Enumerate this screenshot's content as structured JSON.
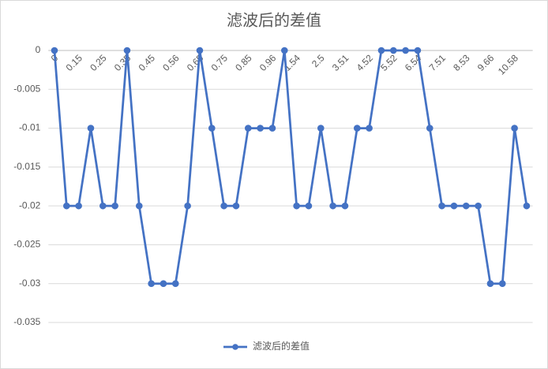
{
  "chart_data": {
    "type": "line",
    "title": "滤波后的差值",
    "categories": [
      "0",
      null,
      "0.15",
      null,
      "0.25",
      null,
      "0.35",
      null,
      "0.45",
      null,
      "0.56",
      null,
      "0.65",
      null,
      "0.75",
      null,
      "0.85",
      null,
      "0.96",
      null,
      "1.54",
      null,
      "2.5",
      null,
      "3.51",
      null,
      "4.52",
      null,
      "5.52",
      null,
      "6.54",
      null,
      "7.51",
      null,
      "8.53",
      null,
      "9.66",
      null,
      "10.58",
      null
    ],
    "series": [
      {
        "name": "滤波后的差值",
        "color": "#4472c4",
        "values": [
          0,
          -0.02,
          -0.02,
          -0.01,
          -0.02,
          -0.02,
          0,
          -0.02,
          -0.03,
          -0.03,
          -0.03,
          -0.02,
          0,
          -0.01,
          -0.02,
          -0.02,
          -0.01,
          -0.01,
          -0.01,
          0,
          -0.02,
          -0.02,
          -0.01,
          -0.02,
          -0.02,
          -0.01,
          -0.01,
          0,
          0,
          0,
          0,
          -0.01,
          -0.02,
          -0.02,
          -0.02,
          -0.02,
          -0.03,
          -0.03,
          -0.01,
          -0.02
        ]
      }
    ],
    "ylim": [
      -0.035,
      0
    ],
    "yticks": [
      0,
      -0.005,
      -0.01,
      -0.015,
      -0.02,
      -0.025,
      -0.03,
      -0.035
    ],
    "grid": true,
    "legend": "bottom"
  }
}
